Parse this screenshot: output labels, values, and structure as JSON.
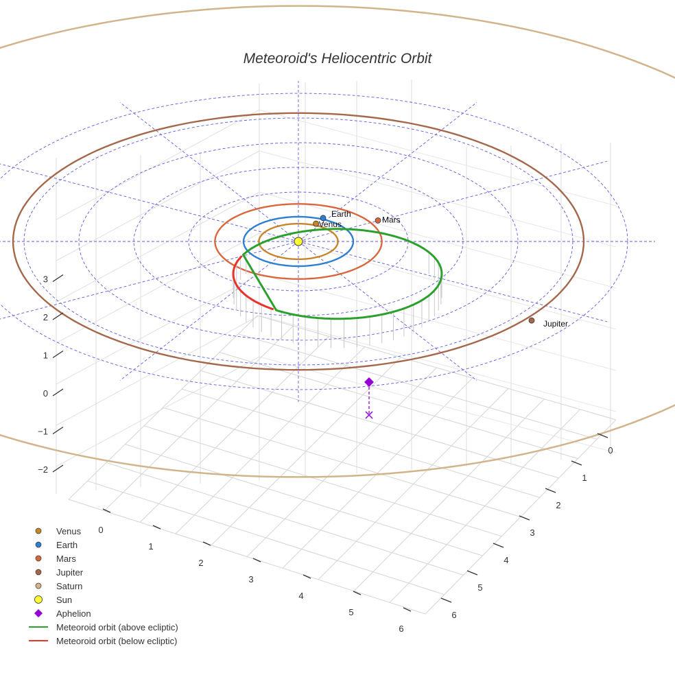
{
  "chart_data": {
    "type": "scatter",
    "projection": "3d",
    "title": "Meteoroid's Heliocentric Orbit",
    "axes": {
      "x": {
        "ticks": [
          "0",
          "1",
          "2",
          "3",
          "4",
          "5",
          "6"
        ]
      },
      "y": {
        "ticks": [
          "0",
          "1",
          "2",
          "3",
          "4",
          "5",
          "6"
        ]
      },
      "z": {
        "ticks": [
          "−2",
          "−1",
          "0",
          "1",
          "2",
          "3"
        ]
      }
    },
    "grid": true,
    "ecliptic_grid": "dashed polar rings and radial lines",
    "colors": {
      "venus": "#c8862a",
      "earth": "#2f7fd1",
      "mars": "#d9673e",
      "jupiter": "#a5674a",
      "saturn": "#d2b48c",
      "sun": "#ffff33",
      "aphelion": "#9400d3",
      "above": "#2ca02c",
      "below": "#e8322c",
      "ecliptic": "#5b5bdc"
    },
    "planets": [
      {
        "name": "Venus",
        "label": "Venus",
        "orbit_au": 0.72
      },
      {
        "name": "Earth",
        "label": "Earth",
        "orbit_au": 1.0
      },
      {
        "name": "Mars",
        "label": "Mars",
        "orbit_au": 1.52
      },
      {
        "name": "Jupiter",
        "label": "Jupiter",
        "orbit_au": 5.2
      },
      {
        "name": "Saturn",
        "orbit_au": 9.54
      }
    ],
    "legend": [
      {
        "label": "Venus",
        "symbol": "dot",
        "color": "#c8862a"
      },
      {
        "label": "Earth",
        "symbol": "dot",
        "color": "#2f7fd1"
      },
      {
        "label": "Mars",
        "symbol": "dot",
        "color": "#d9673e"
      },
      {
        "label": "Jupiter",
        "symbol": "dot",
        "color": "#a5674a"
      },
      {
        "label": "Saturn",
        "symbol": "dot",
        "color": "#d2b48c"
      },
      {
        "label": "Sun",
        "symbol": "big-dot",
        "color": "#ffff33"
      },
      {
        "label": "Aphelion",
        "symbol": "diamond",
        "color": "#9400d3"
      },
      {
        "label": "Meteoroid orbit (above ecliptic)",
        "symbol": "line",
        "color": "#2ca02c"
      },
      {
        "label": "Meteoroid orbit (below ecliptic)",
        "symbol": "line",
        "color": "#e8322c"
      }
    ],
    "meteoroid_orbit": {
      "semi_major_au": 2.0,
      "eccentricity": 0.5,
      "perihelion_au": 1.0,
      "aphelion_au": 3.0
    }
  }
}
